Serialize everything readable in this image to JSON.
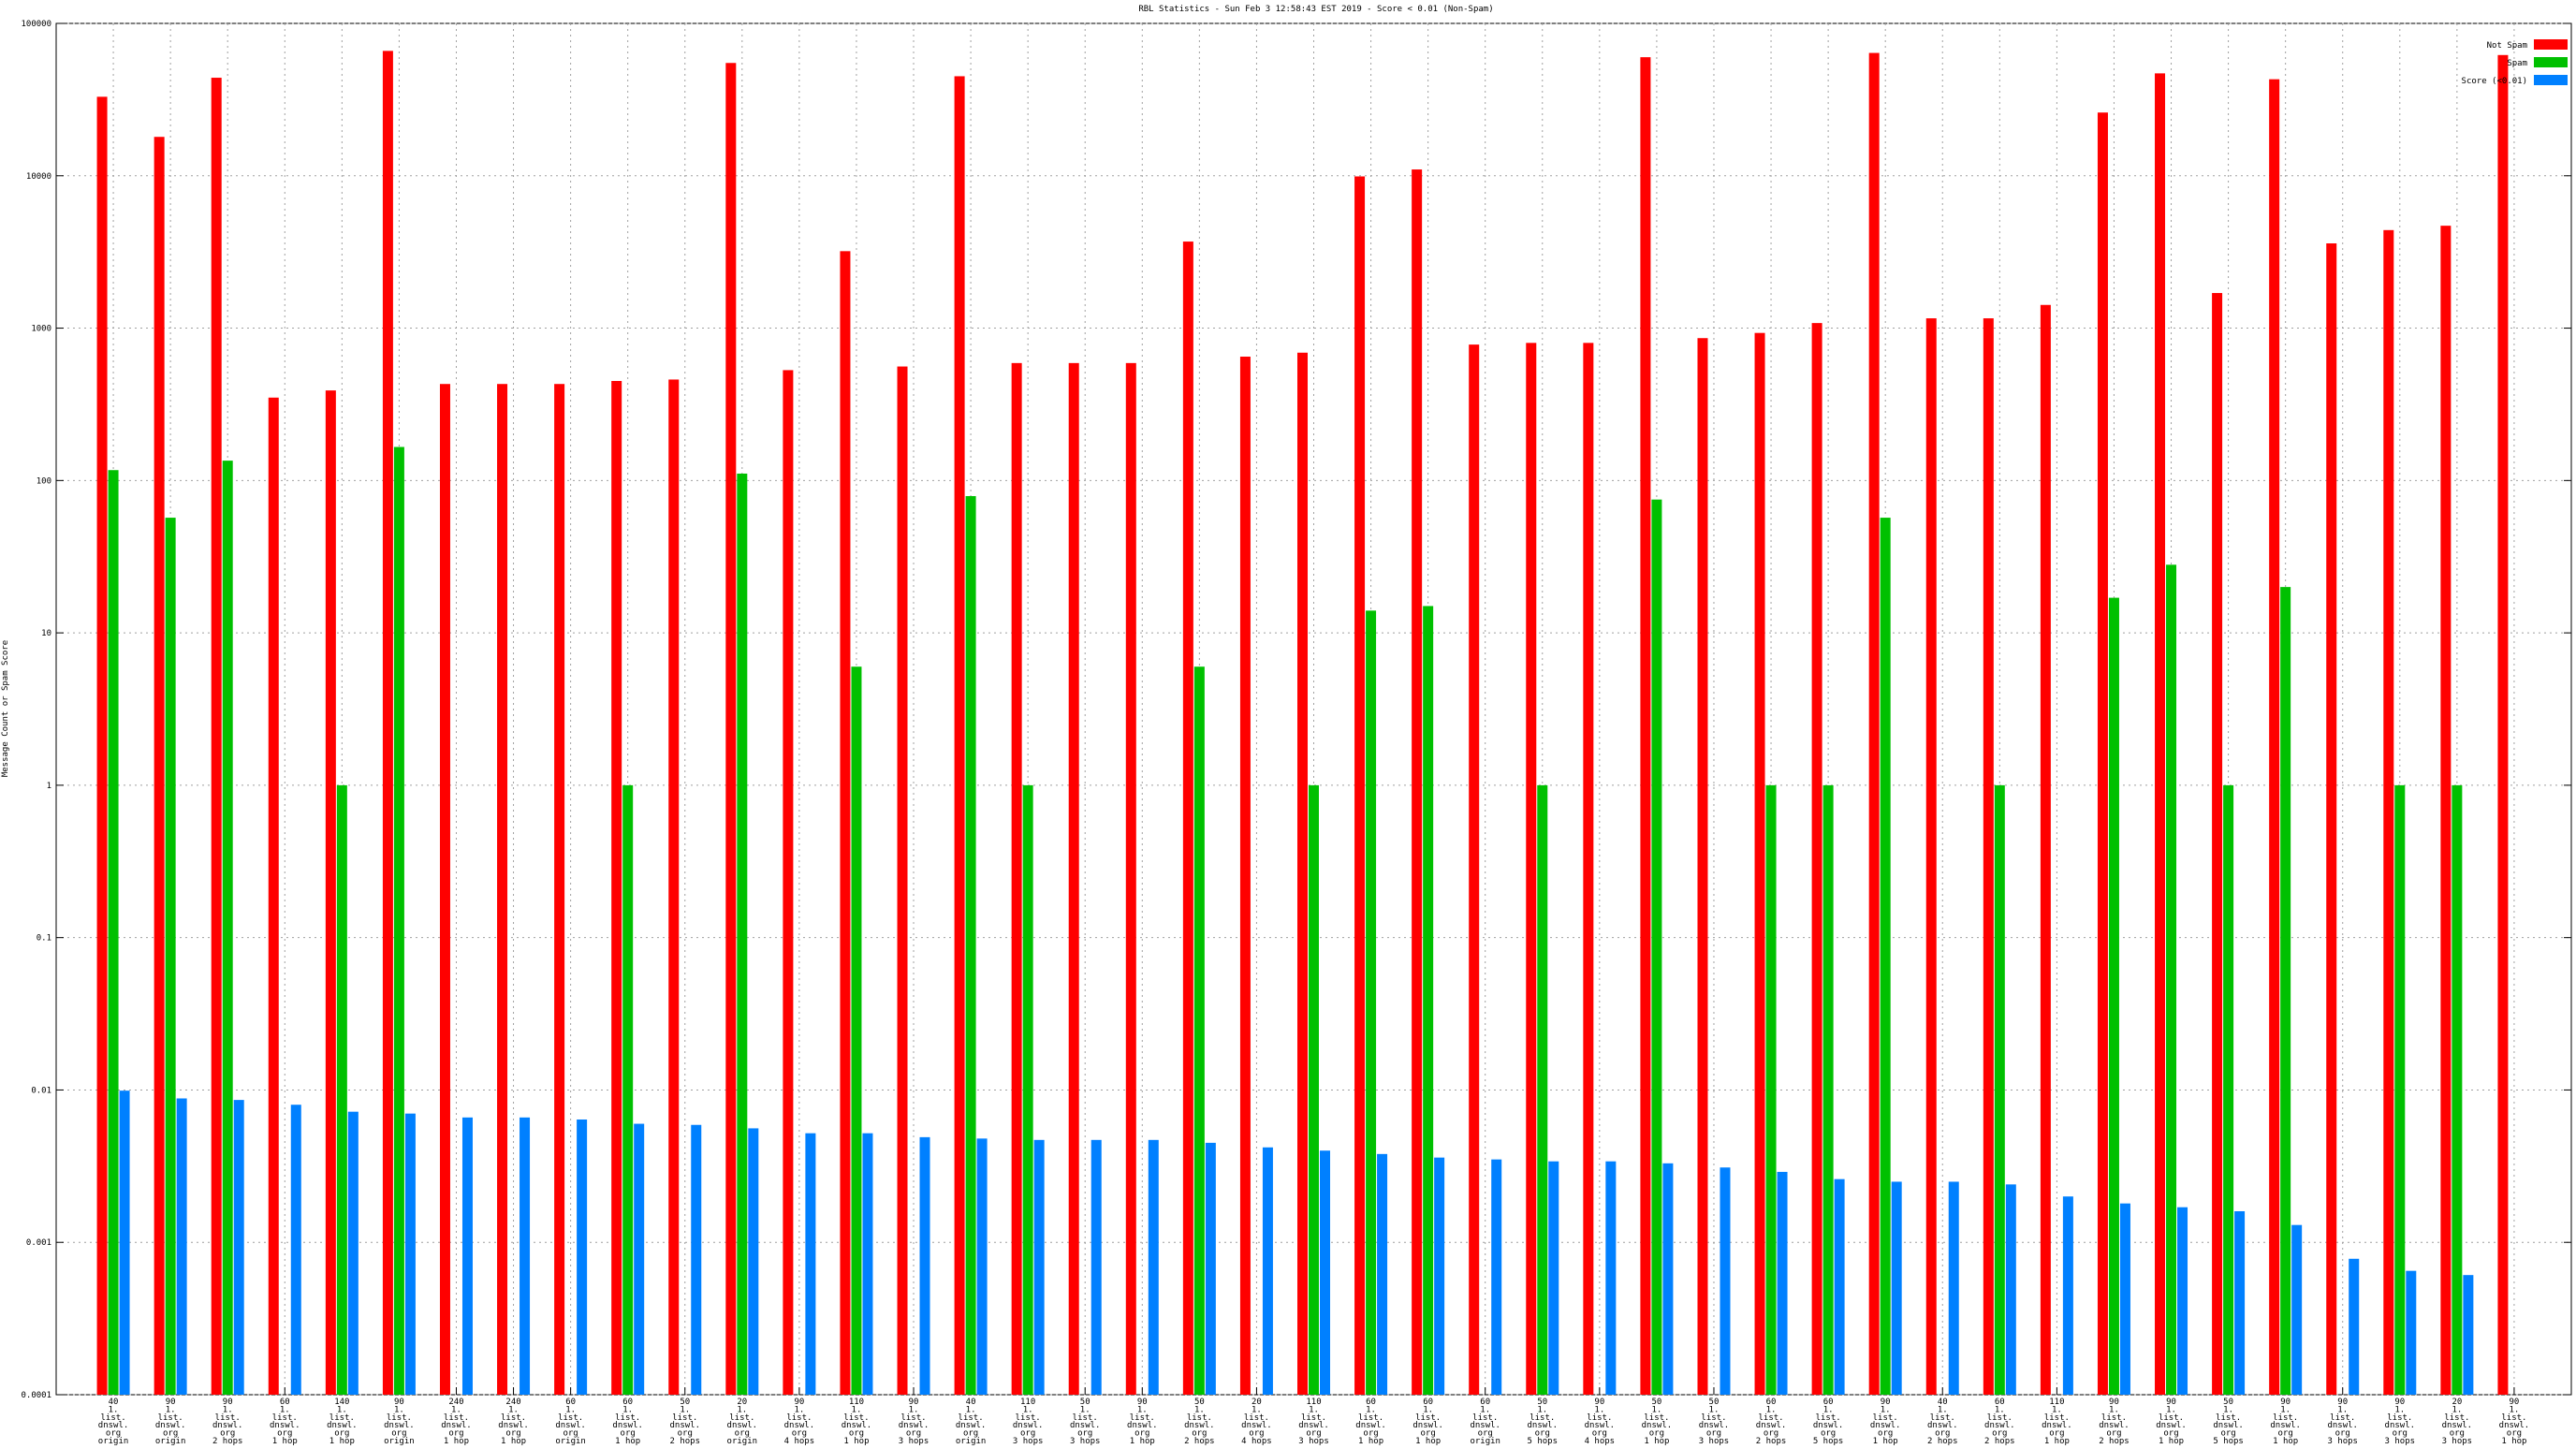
{
  "chart_data": {
    "type": "bar",
    "title": "RBL Statistics - Sun Feb  3 12:58:43 EST 2019 - Score < 0.01 (Non-Spam)",
    "y_label": "Message Count or Spam Score",
    "log_scale": true,
    "grid": true,
    "legend": "top-right",
    "ylim": [
      0.0001,
      100000
    ],
    "yticks": [
      0.0001,
      0.001,
      0.01,
      0.1,
      1,
      10,
      100,
      1000,
      10000,
      100000
    ],
    "categories": [
      [
        "40",
        "1.",
        "list.",
        "dnswl.",
        "org",
        "origin"
      ],
      [
        "90",
        "1.",
        "list.",
        "dnswl.",
        "org",
        "origin"
      ],
      [
        "90",
        "1.",
        "list.",
        "dnswl.",
        "org",
        "2 hops"
      ],
      [
        "60",
        "1.",
        "list.",
        "dnswl.",
        "org",
        "1 hop"
      ],
      [
        "140",
        "1.",
        "list.",
        "dnswl.",
        "org",
        "1 hop"
      ],
      [
        "90",
        "1.",
        "list.",
        "dnswl.",
        "org",
        "origin"
      ],
      [
        "240",
        "1.",
        "list.",
        "dnswl.",
        "org",
        "1 hop"
      ],
      [
        "240",
        "1.",
        "list.",
        "dnswl.",
        "org",
        "1 hop"
      ],
      [
        "60",
        "1.",
        "list.",
        "dnswl.",
        "org",
        "origin"
      ],
      [
        "60",
        "1.",
        "list.",
        "dnswl.",
        "org",
        "1 hop"
      ],
      [
        "50",
        "1.",
        "list.",
        "dnswl.",
        "org",
        "2 hops"
      ],
      [
        "20",
        "1.",
        "list.",
        "dnswl.",
        "org",
        "origin"
      ],
      [
        "90",
        "1.",
        "list.",
        "dnswl.",
        "org",
        "4 hops"
      ],
      [
        "110",
        "1.",
        "list.",
        "dnswl.",
        "org",
        "1 hop"
      ],
      [
        "90",
        "1.",
        "list.",
        "dnswl.",
        "org",
        "3 hops"
      ],
      [
        "40",
        "1.",
        "list.",
        "dnswl.",
        "org",
        "origin"
      ],
      [
        "110",
        "1.",
        "list.",
        "dnswl.",
        "org",
        "3 hops"
      ],
      [
        "50",
        "1.",
        "list.",
        "dnswl.",
        "org",
        "3 hops"
      ],
      [
        "90",
        "1.",
        "list.",
        "dnswl.",
        "org",
        "1 hop"
      ],
      [
        "50",
        "1.",
        "list.",
        "dnswl.",
        "org",
        "2 hops"
      ],
      [
        "20",
        "1.",
        "list.",
        "dnswl.",
        "org",
        "4 hops"
      ],
      [
        "110",
        "1.",
        "list.",
        "dnswl.",
        "org",
        "3 hops"
      ],
      [
        "60",
        "1.",
        "list.",
        "dnswl.",
        "org",
        "1 hop"
      ],
      [
        "60",
        "1.",
        "list.",
        "dnswl.",
        "org",
        "1 hop"
      ],
      [
        "60",
        "1.",
        "list.",
        "dnswl.",
        "org",
        "origin"
      ],
      [
        "50",
        "1.",
        "list.",
        "dnswl.",
        "org",
        "5 hops"
      ],
      [
        "90",
        "1.",
        "list.",
        "dnswl.",
        "org",
        "4 hops"
      ],
      [
        "50",
        "1.",
        "list.",
        "dnswl.",
        "org",
        "1 hop"
      ],
      [
        "50",
        "1.",
        "list.",
        "dnswl.",
        "org",
        "3 hops"
      ],
      [
        "60",
        "1.",
        "list.",
        "dnswl.",
        "org",
        "2 hops"
      ],
      [
        "60",
        "1.",
        "list.",
        "dnswl.",
        "org",
        "5 hops"
      ],
      [
        "90",
        "1.",
        "list.",
        "dnswl.",
        "org",
        "1 hop"
      ],
      [
        "40",
        "1.",
        "list.",
        "dnswl.",
        "org",
        "2 hops"
      ],
      [
        "60",
        "1.",
        "list.",
        "dnswl.",
        "org",
        "2 hops"
      ],
      [
        "110",
        "1.",
        "list.",
        "dnswl.",
        "org",
        "1 hop"
      ],
      [
        "90",
        "1.",
        "list.",
        "dnswl.",
        "org",
        "2 hops"
      ],
      [
        "90",
        "1.",
        "list.",
        "dnswl.",
        "org",
        "1 hop"
      ],
      [
        "50",
        "1.",
        "list.",
        "dnswl.",
        "org",
        "5 hops"
      ],
      [
        "90",
        "1.",
        "list.",
        "dnswl.",
        "org",
        "1 hop"
      ],
      [
        "90",
        "1.",
        "list.",
        "dnswl.",
        "org",
        "3 hops"
      ],
      [
        "90",
        "1.",
        "list.",
        "dnswl.",
        "org",
        "3 hops"
      ],
      [
        "20",
        "1.",
        "list.",
        "dnswl.",
        "org",
        "3 hops"
      ],
      [
        "90",
        "1.",
        "list.",
        "dnswl.",
        "org",
        "1 hop"
      ]
    ],
    "series": [
      {
        "name": "Not Spam",
        "color": "#ff0000",
        "values": [
          33000,
          18000,
          44000,
          350,
          390,
          66000,
          430,
          430,
          430,
          450,
          460,
          55000,
          530,
          3200,
          560,
          45000,
          590,
          590,
          590,
          3700,
          650,
          690,
          9900,
          11000,
          780,
          800,
          800,
          60000,
          860,
          930,
          1080,
          64000,
          1160,
          1160,
          1420,
          26000,
          47000,
          1700,
          43000,
          3600,
          4400,
          4700,
          62000
        ]
      },
      {
        "name": "Spam",
        "color": "#00c000",
        "values": [
          117,
          57,
          135,
          null,
          1,
          166,
          null,
          null,
          null,
          1,
          null,
          111,
          null,
          6,
          null,
          79,
          1,
          null,
          null,
          6,
          null,
          1,
          14,
          15,
          null,
          1,
          null,
          75,
          null,
          1,
          1,
          57,
          null,
          1,
          null,
          17,
          28,
          1,
          20,
          null,
          1,
          1,
          null
        ]
      },
      {
        "name": "Score (<0.01)",
        "color": "#0080ff",
        "values": [
          0.0099,
          0.0088,
          0.0086,
          0.008,
          0.0072,
          0.007,
          0.0066,
          0.0066,
          0.0064,
          0.006,
          0.0059,
          0.0056,
          0.0052,
          0.0052,
          0.0049,
          0.0048,
          0.0047,
          0.0047,
          0.0047,
          0.0045,
          0.0042,
          0.004,
          0.0038,
          0.0036,
          0.0035,
          0.0034,
          0.0034,
          0.0033,
          0.0031,
          0.0029,
          0.0026,
          0.0025,
          0.0025,
          0.0024,
          0.002,
          0.0018,
          0.0017,
          0.0016,
          0.0013,
          0.00078,
          0.00065,
          0.00061,
          null
        ]
      }
    ]
  }
}
